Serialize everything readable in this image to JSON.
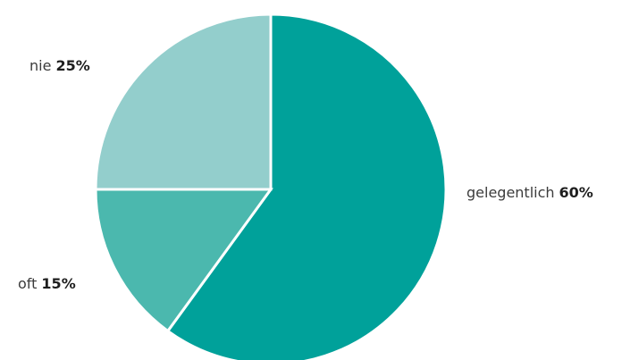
{
  "chart_data": {
    "type": "pie",
    "slices": [
      {
        "label": "gelegentlich",
        "value": 60,
        "value_label": "60%",
        "color": "#00a19a"
      },
      {
        "label": "oft",
        "value": 15,
        "value_label": "15%",
        "color": "#4bb8ae"
      },
      {
        "label": "nie",
        "value": 25,
        "value_label": "25%",
        "color": "#93cecc"
      }
    ],
    "start": "12 o'clock",
    "direction": "clockwise",
    "slice_border_color": "#ffffff"
  }
}
